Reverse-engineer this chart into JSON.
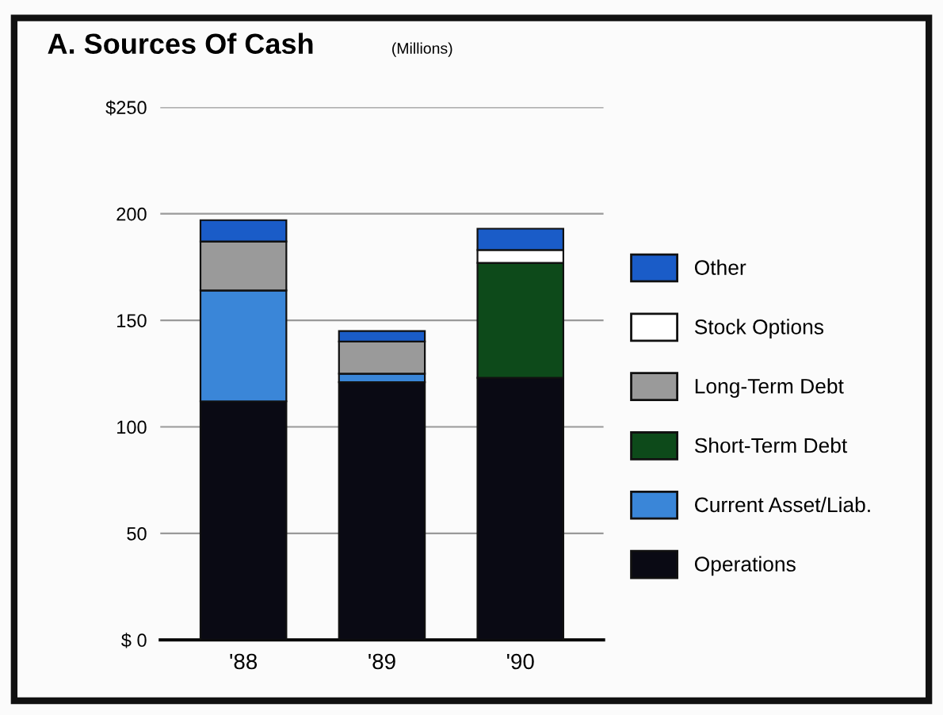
{
  "chart_data": {
    "type": "bar",
    "title": "A. Sources Of Cash",
    "subtitle": "(Millions)",
    "categories": [
      "'88",
      "'89",
      "'90"
    ],
    "stacked": true,
    "series": [
      {
        "name": "Operations",
        "color": "#0a0a14",
        "values": [
          112,
          121,
          123
        ]
      },
      {
        "name": "Current Asset/Liab.",
        "color": "#3a86d8",
        "values": [
          52,
          4,
          0
        ]
      },
      {
        "name": "Short-Term Debt",
        "color": "#0d4a1a",
        "values": [
          0,
          0,
          54
        ]
      },
      {
        "name": "Long-Term Debt",
        "color": "#9a9a9a",
        "values": [
          23,
          15,
          0
        ]
      },
      {
        "name": "Stock Options",
        "color": "#ffffff",
        "values": [
          0,
          0,
          6
        ]
      },
      {
        "name": "Other",
        "color": "#1a5cc8",
        "values": [
          10,
          5,
          10
        ]
      }
    ],
    "ylim": [
      0,
      250
    ],
    "yticks": [
      {
        "value": 0,
        "label": "$ 0"
      },
      50,
      100,
      150,
      200,
      {
        "value": 250,
        "label": "$250"
      }
    ],
    "grid": "y",
    "legend": "right"
  }
}
